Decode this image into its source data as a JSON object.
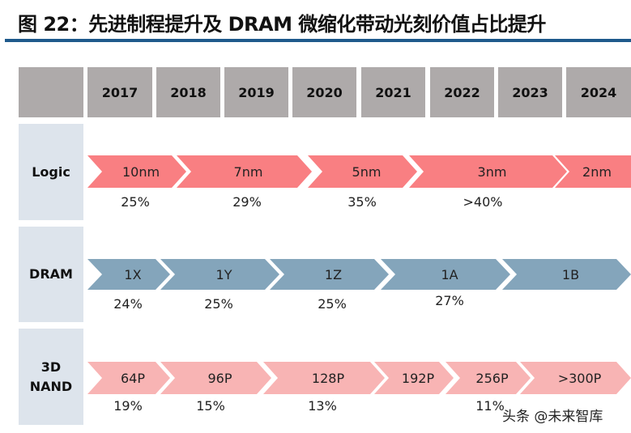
{
  "title": "图 22：先进制程提升及 DRAM 微缩化带动光刻价值占比提升",
  "years": [
    "2017",
    "2018",
    "2019",
    "2020",
    "2021",
    "2022",
    "2023",
    "2024"
  ],
  "rows": {
    "logic": {
      "label": "Logic",
      "color": "#f97f82",
      "stages": [
        "10nm",
        "7nm",
        "5nm",
        "3nm",
        "2nm"
      ],
      "shares": [
        "25%",
        "29%",
        "35%",
        ">40%"
      ]
    },
    "dram": {
      "label": "DRAM",
      "color": "#84a5bb",
      "stages": [
        "1X",
        "1Y",
        "1Z",
        "1A",
        "1B"
      ],
      "shares": [
        "24%",
        "25%",
        "25%",
        "27%"
      ]
    },
    "nand": {
      "label_line1": "3D",
      "label_line2": "NAND",
      "color": "#f8b4b4",
      "stages": [
        "64P",
        "96P",
        "128P",
        "192P",
        "256P",
        ">300P"
      ],
      "shares": [
        "19%",
        "15%",
        "13%",
        "11%"
      ]
    }
  },
  "watermark": "头条 @未来智库"
}
